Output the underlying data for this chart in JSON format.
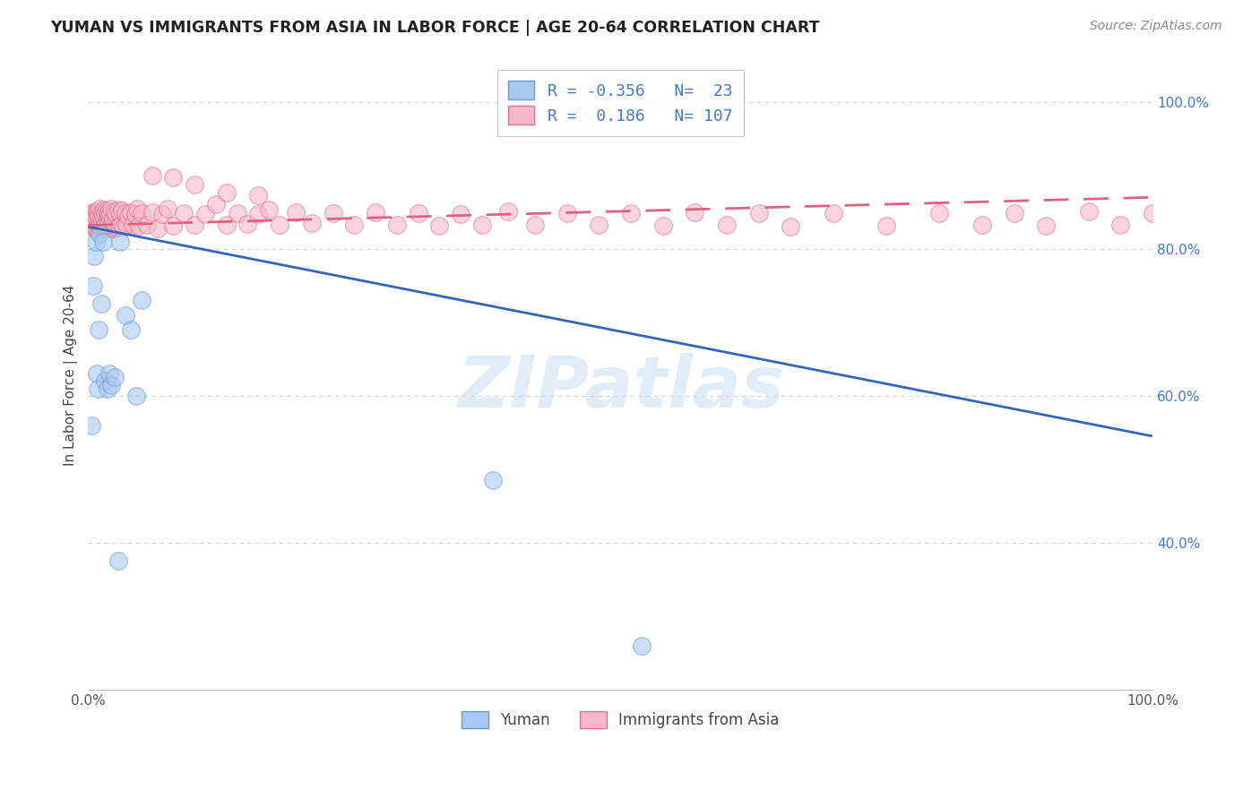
{
  "title": "YUMAN VS IMMIGRANTS FROM ASIA IN LABOR FORCE | AGE 20-64 CORRELATION CHART",
  "source": "Source: ZipAtlas.com",
  "ylabel": "In Labor Force | Age 20-64",
  "yuman_R": -0.356,
  "yuman_N": 23,
  "asia_R": 0.186,
  "asia_N": 107,
  "background_color": "#ffffff",
  "grid_color": "#cccccc",
  "yuman_scatter_color": "#a8c8f0",
  "yuman_edge_color": "#6699cc",
  "yuman_line_color": "#3366bb",
  "asia_scatter_color": "#f5b8c8",
  "asia_edge_color": "#e07090",
  "asia_line_color": "#e06080",
  "watermark_color": "#c8ddf0",
  "watermark_text": "ZIPatlas",
  "yuman_x": [
    0.003,
    0.005,
    0.006,
    0.007,
    0.008,
    0.009,
    0.01,
    0.011,
    0.012,
    0.014,
    0.016,
    0.018,
    0.02,
    0.022,
    0.025,
    0.028,
    0.03,
    0.035,
    0.04,
    0.045,
    0.05,
    0.38,
    0.52
  ],
  "yuman_y": [
    0.56,
    0.75,
    0.79,
    0.81,
    0.63,
    0.61,
    0.69,
    0.82,
    0.725,
    0.81,
    0.62,
    0.61,
    0.63,
    0.615,
    0.625,
    0.375,
    0.81,
    0.71,
    0.69,
    0.6,
    0.73,
    0.485,
    0.26
  ],
  "asia_x": [
    0.003,
    0.004,
    0.005,
    0.005,
    0.006,
    0.006,
    0.007,
    0.007,
    0.008,
    0.008,
    0.009,
    0.009,
    0.01,
    0.01,
    0.011,
    0.011,
    0.012,
    0.012,
    0.013,
    0.013,
    0.014,
    0.014,
    0.015,
    0.015,
    0.016,
    0.016,
    0.017,
    0.017,
    0.018,
    0.018,
    0.019,
    0.02,
    0.02,
    0.021,
    0.022,
    0.022,
    0.023,
    0.024,
    0.025,
    0.025,
    0.026,
    0.027,
    0.028,
    0.029,
    0.03,
    0.031,
    0.032,
    0.033,
    0.035,
    0.036,
    0.038,
    0.04,
    0.042,
    0.044,
    0.046,
    0.048,
    0.05,
    0.055,
    0.06,
    0.065,
    0.07,
    0.075,
    0.08,
    0.09,
    0.1,
    0.11,
    0.12,
    0.13,
    0.14,
    0.15,
    0.16,
    0.17,
    0.18,
    0.195,
    0.21,
    0.23,
    0.25,
    0.27,
    0.29,
    0.31,
    0.33,
    0.35,
    0.37,
    0.395,
    0.42,
    0.45,
    0.48,
    0.51,
    0.54,
    0.57,
    0.6,
    0.63,
    0.66,
    0.7,
    0.75,
    0.8,
    0.84,
    0.87,
    0.9,
    0.94,
    0.97,
    1.0,
    0.06,
    0.08,
    0.1,
    0.13,
    0.16
  ],
  "asia_y": [
    0.849,
    0.831,
    0.85,
    0.83,
    0.847,
    0.832,
    0.844,
    0.826,
    0.851,
    0.828,
    0.847,
    0.832,
    0.845,
    0.83,
    0.855,
    0.831,
    0.843,
    0.828,
    0.85,
    0.832,
    0.846,
    0.828,
    0.853,
    0.83,
    0.848,
    0.831,
    0.852,
    0.829,
    0.847,
    0.833,
    0.85,
    0.845,
    0.828,
    0.848,
    0.83,
    0.854,
    0.84,
    0.828,
    0.851,
    0.832,
    0.847,
    0.829,
    0.853,
    0.831,
    0.848,
    0.832,
    0.852,
    0.83,
    0.848,
    0.833,
    0.845,
    0.85,
    0.832,
    0.847,
    0.855,
    0.831,
    0.848,
    0.833,
    0.85,
    0.828,
    0.847,
    0.855,
    0.831,
    0.849,
    0.833,
    0.847,
    0.861,
    0.832,
    0.849,
    0.834,
    0.847,
    0.853,
    0.833,
    0.85,
    0.835,
    0.848,
    0.832,
    0.85,
    0.833,
    0.849,
    0.831,
    0.847,
    0.832,
    0.851,
    0.833,
    0.849,
    0.832,
    0.848,
    0.831,
    0.85,
    0.832,
    0.848,
    0.83,
    0.848,
    0.831,
    0.849,
    0.832,
    0.848,
    0.831,
    0.851,
    0.832,
    0.849,
    0.9,
    0.897,
    0.887,
    0.876,
    0.873
  ],
  "trend_yuman_x0": 0.0,
  "trend_yuman_y0": 0.83,
  "trend_yuman_x1": 1.0,
  "trend_yuman_y1": 0.545,
  "trend_asia_x0": 0.0,
  "trend_asia_y0": 0.832,
  "trend_asia_x1": 1.0,
  "trend_asia_y1": 0.87,
  "xlim": [
    0.0,
    1.0
  ],
  "ylim": [
    0.2,
    1.055
  ],
  "yticks": [
    0.4,
    0.6,
    0.8,
    1.0
  ],
  "ytick_labels": [
    "40.0%",
    "60.0%",
    "80.0%",
    "100.0%"
  ],
  "yaxis_side": "right",
  "title_fontsize": 12.5,
  "source_fontsize": 10,
  "ylabel_fontsize": 11,
  "tick_fontsize": 11,
  "legend_R_color": "#4477cc"
}
